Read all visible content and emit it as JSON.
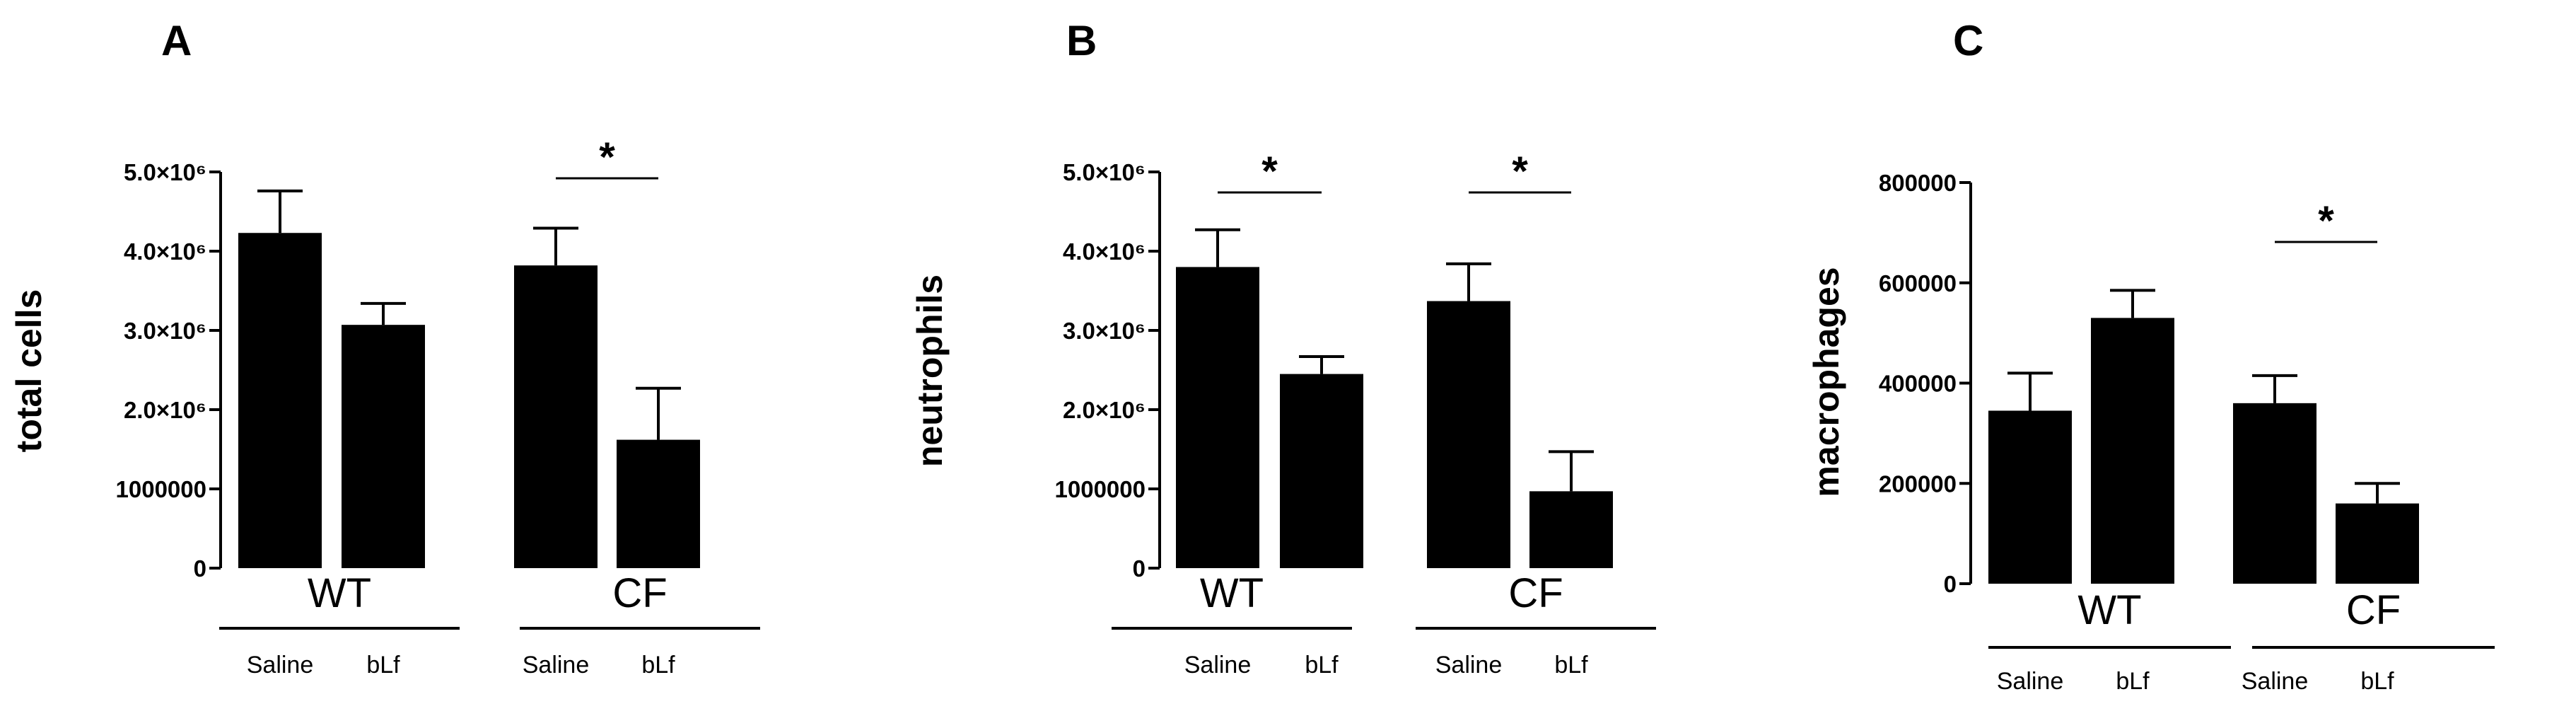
{
  "chart_data": [
    {
      "type": "bar",
      "panel": "A",
      "ylabel": "total cells",
      "ylim": [
        0,
        5000000
      ],
      "yticks": [
        {
          "value": 0,
          "label": "0"
        },
        {
          "value": 1000000,
          "label": "1000000"
        },
        {
          "value": 2000000,
          "label": "2.0×10⁶"
        },
        {
          "value": 3000000,
          "label": "3.0×10⁶"
        },
        {
          "value": 4000000,
          "label": "4.0×10⁶"
        },
        {
          "value": 5000000,
          "label": "5.0×10⁶"
        }
      ],
      "groups": [
        {
          "name": "WT",
          "categories": [
            "Saline",
            "bLf"
          ]
        },
        {
          "name": "CF",
          "categories": [
            "Saline",
            "bLf"
          ]
        }
      ],
      "values": [
        4230000,
        3070000,
        3820000,
        1620000
      ],
      "errors": [
        530000,
        270000,
        470000,
        650000
      ],
      "significance": [
        {
          "from": 2,
          "to": 3,
          "label": "*"
        }
      ]
    },
    {
      "type": "bar",
      "panel": "B",
      "ylabel": "neutrophils",
      "ylim": [
        0,
        5000000
      ],
      "yticks": [
        {
          "value": 0,
          "label": "0"
        },
        {
          "value": 1000000,
          "label": "1000000"
        },
        {
          "value": 2000000,
          "label": "2.0×10⁶"
        },
        {
          "value": 3000000,
          "label": "3.0×10⁶"
        },
        {
          "value": 4000000,
          "label": "4.0×10⁶"
        },
        {
          "value": 5000000,
          "label": "5.0×10⁶"
        }
      ],
      "groups": [
        {
          "name": "WT",
          "categories": [
            "Saline",
            "bLf"
          ]
        },
        {
          "name": "CF",
          "categories": [
            "Saline",
            "bLf"
          ]
        }
      ],
      "values": [
        3800000,
        2450000,
        3370000,
        970000
      ],
      "errors": [
        470000,
        220000,
        470000,
        500000
      ],
      "significance": [
        {
          "from": 0,
          "to": 1,
          "label": "*"
        },
        {
          "from": 2,
          "to": 3,
          "label": "*"
        }
      ]
    },
    {
      "type": "bar",
      "panel": "C",
      "ylabel": "macrophages",
      "ylim": [
        0,
        800000
      ],
      "yticks": [
        {
          "value": 0,
          "label": "0"
        },
        {
          "value": 200000,
          "label": "200000"
        },
        {
          "value": 400000,
          "label": "400000"
        },
        {
          "value": 600000,
          "label": "600000"
        },
        {
          "value": 800000,
          "label": "800000"
        }
      ],
      "groups": [
        {
          "name": "WT",
          "categories": [
            "Saline",
            "bLf"
          ]
        },
        {
          "name": "CF",
          "categories": [
            "Saline",
            "bLf"
          ]
        }
      ],
      "values": [
        345000,
        530000,
        360000,
        160000
      ],
      "errors": [
        75000,
        55000,
        55000,
        40000
      ],
      "significance": [
        {
          "from": 2,
          "to": 3,
          "label": "*"
        }
      ]
    }
  ]
}
